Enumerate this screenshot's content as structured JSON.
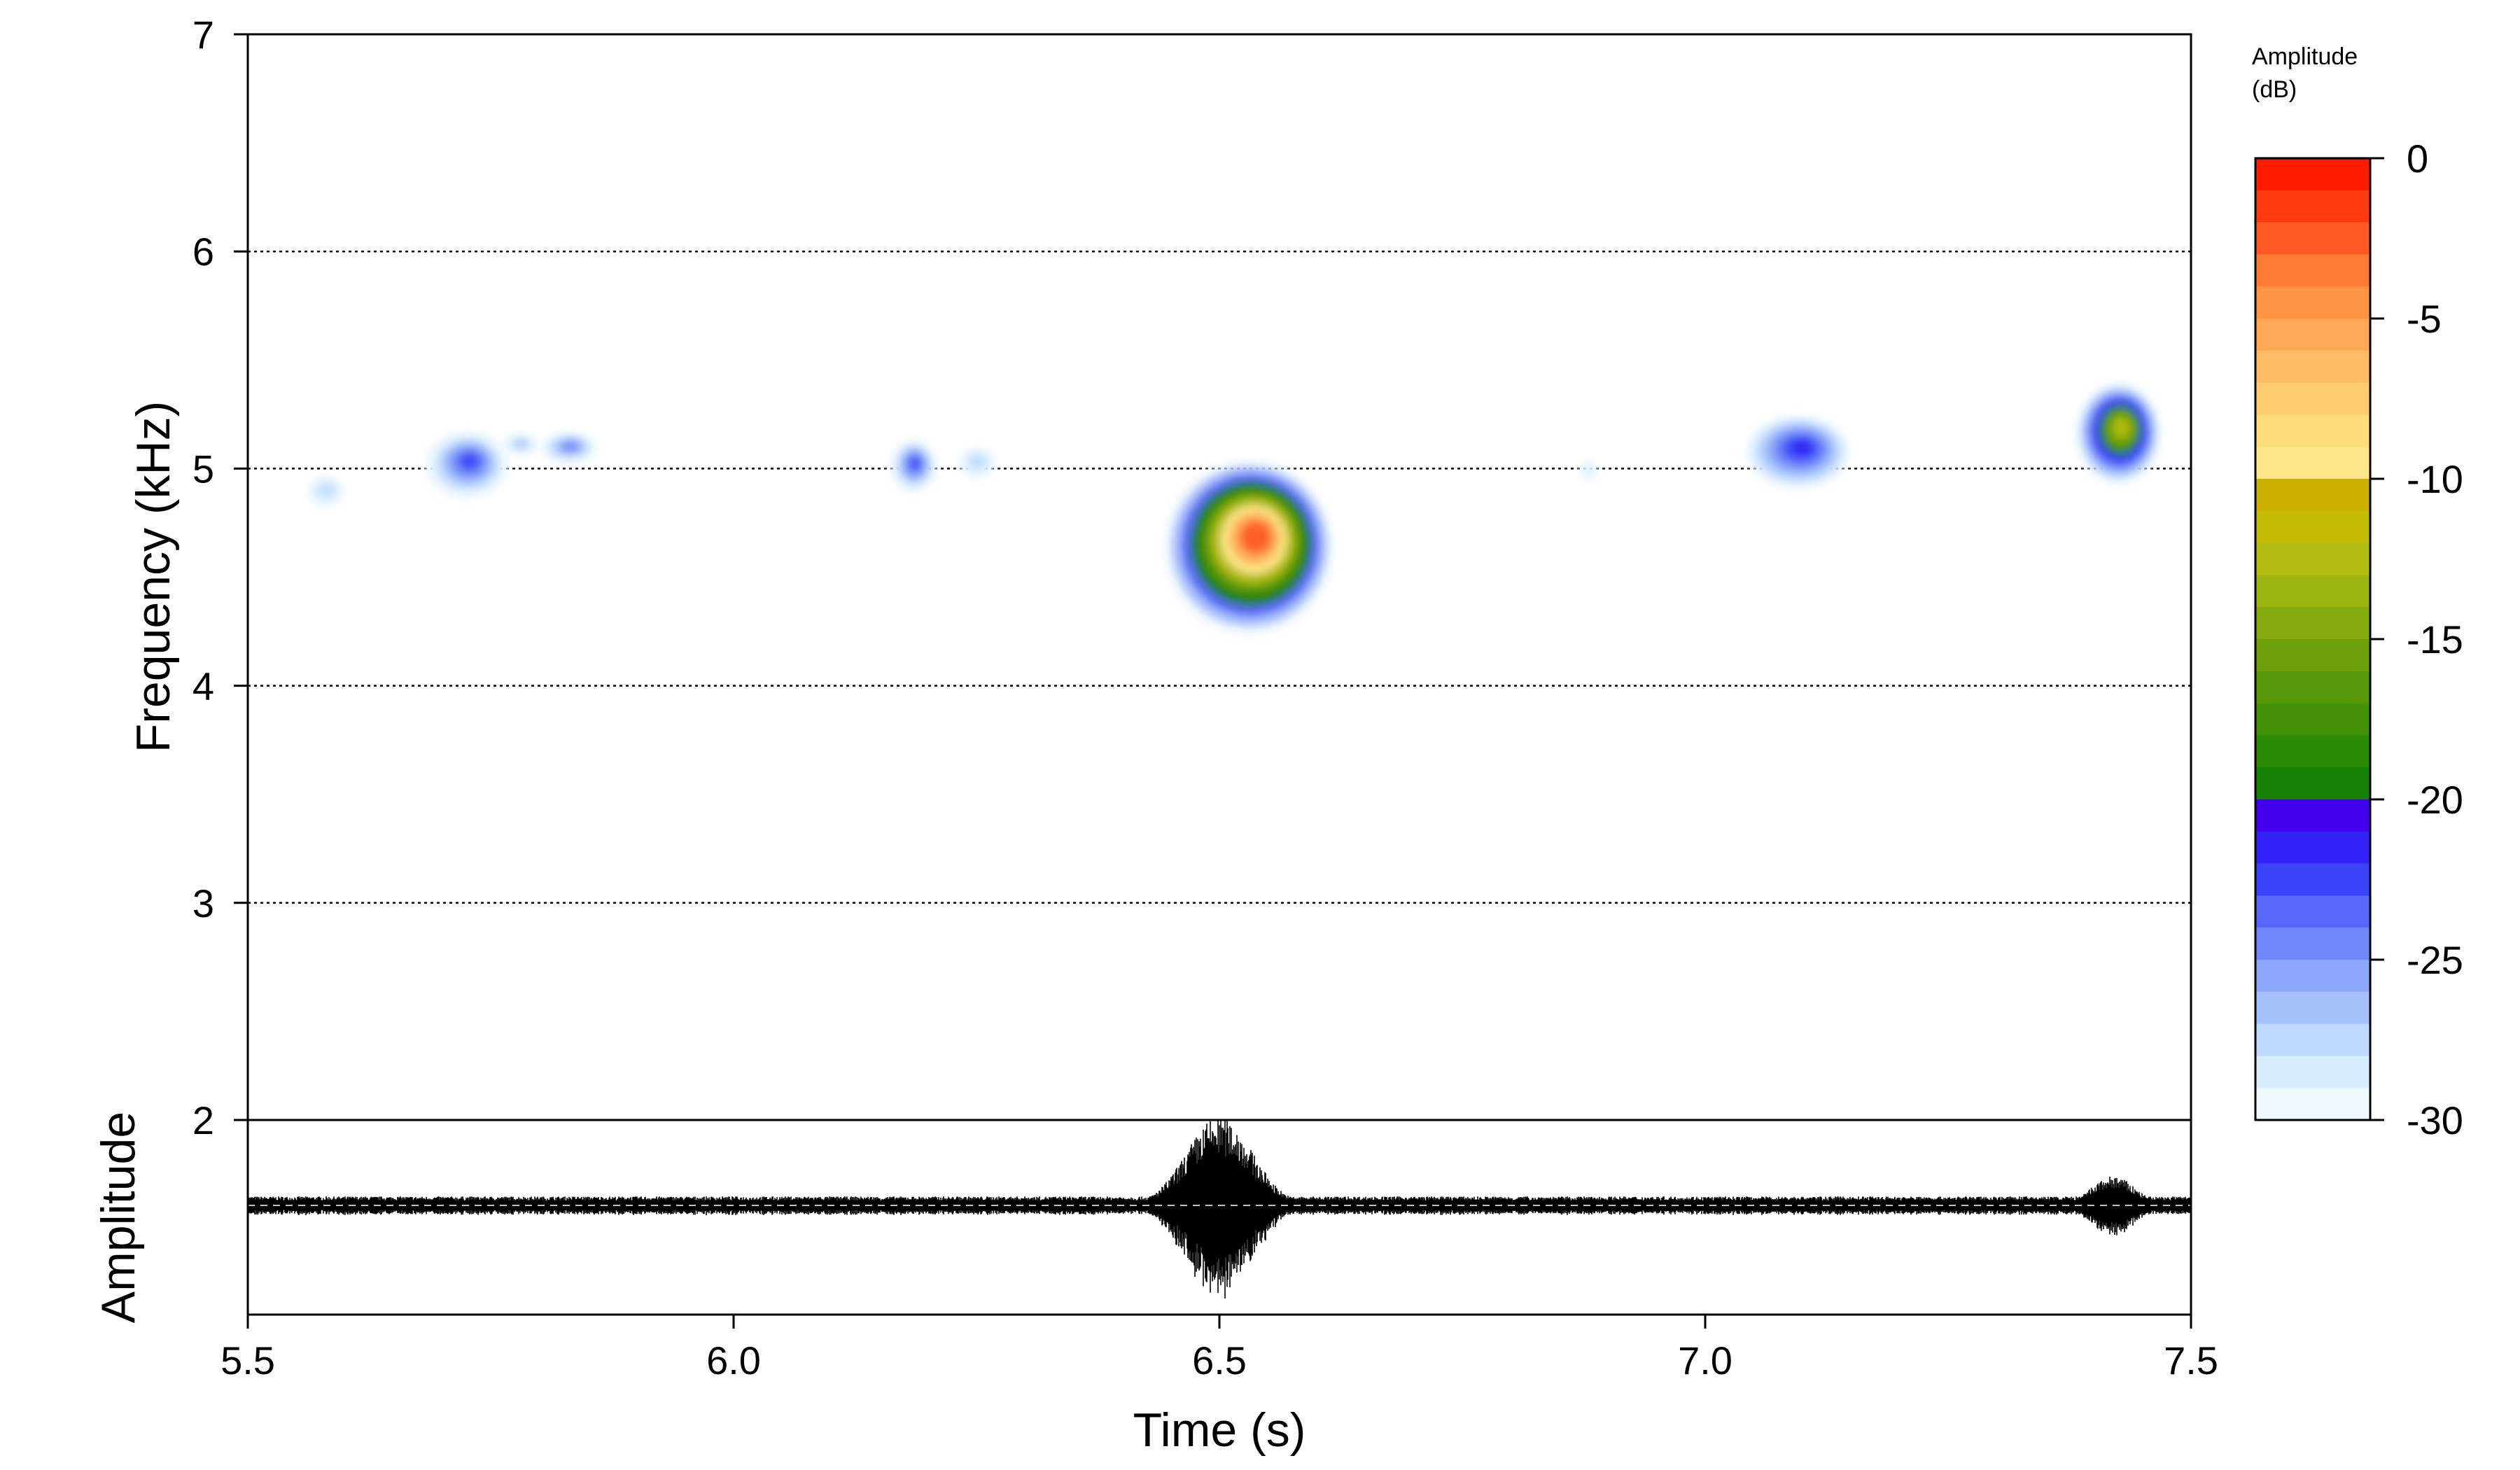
{
  "chart_data": {
    "type": "heatmap",
    "subtype": "spectrogram-with-oscillogram",
    "xlabel": "Time (s)",
    "ylabel_spectrogram": "Frequency (kHz)",
    "ylabel_oscillogram": "Amplitude",
    "colorbar_title_line1": "Amplitude",
    "colorbar_title_line2": "(dB)",
    "xlim": [
      5.5,
      7.5
    ],
    "ylim_spectrogram": [
      2,
      7
    ],
    "x_ticks": [
      "5.5",
      "6.0",
      "6.5",
      "7.0",
      "7.5"
    ],
    "x_tick_values": [
      5.5,
      6.0,
      6.5,
      7.0,
      7.5
    ],
    "y_ticks": [
      "2",
      "3",
      "4",
      "5",
      "6",
      "7"
    ],
    "y_tick_values": [
      2,
      3,
      4,
      5,
      6,
      7
    ],
    "gridlines_khz": [
      3,
      4,
      5,
      6
    ],
    "grid_style": "dotted horizontal",
    "colorbar_ticks": [
      "0",
      "-5",
      "-10",
      "-15",
      "-20",
      "-25",
      "-30"
    ],
    "colorbar_tick_values": [
      0,
      -5,
      -10,
      -15,
      -20,
      -25,
      -30
    ],
    "colorbar_range_db": [
      -30,
      0
    ],
    "colorbar_colors_top_to_bottom": [
      "#ff1a00",
      "#ff3a10",
      "#ff5a25",
      "#ff7a35",
      "#ff9445",
      "#ffa855",
      "#ffbb66",
      "#ffcc70",
      "#ffdb7a",
      "#ffe68a",
      "#ccb000",
      "#c4bb05",
      "#b3bc10",
      "#9cb510",
      "#85aa0e",
      "#6ea00c",
      "#579808",
      "#409008",
      "#2a8a06",
      "#158004",
      "#4400ee",
      "#3322f5",
      "#3a44f8",
      "#5566f8",
      "#7088f8",
      "#8ca6fa",
      "#a6c0fc",
      "#c0daff",
      "#d8ecff",
      "#eef8ff"
    ],
    "calls": [
      {
        "start_s": 5.56,
        "end_s": 5.6,
        "freq_khz": [
          4.82,
          4.97
        ],
        "peak_db": -27
      },
      {
        "start_s": 5.68,
        "end_s": 5.77,
        "freq_khz": [
          4.85,
          5.18
        ],
        "peak_db": -22
      },
      {
        "start_s": 5.76,
        "end_s": 5.8,
        "freq_khz": [
          5.06,
          5.16
        ],
        "peak_db": -26
      },
      {
        "start_s": 5.8,
        "end_s": 5.86,
        "freq_khz": [
          5.02,
          5.17
        ],
        "peak_db": -24
      },
      {
        "start_s": 6.16,
        "end_s": 6.21,
        "freq_khz": [
          4.88,
          5.14
        ],
        "peak_db": -22
      },
      {
        "start_s": 6.23,
        "end_s": 6.27,
        "freq_khz": [
          4.95,
          5.1
        ],
        "peak_db": -27
      },
      {
        "start_s": 6.44,
        "end_s": 6.62,
        "freq_khz": [
          4.22,
          5.05
        ],
        "peak_db": -2
      },
      {
        "start_s": 6.87,
        "end_s": 6.89,
        "freq_khz": [
          4.94,
          5.04
        ],
        "peak_db": -28
      },
      {
        "start_s": 7.04,
        "end_s": 7.15,
        "freq_khz": [
          4.9,
          5.25
        ],
        "peak_db": -21
      },
      {
        "start_s": 7.38,
        "end_s": 7.47,
        "freq_khz": [
          4.92,
          5.4
        ],
        "peak_db": -12
      }
    ],
    "waveform_bursts": [
      {
        "center_s": 6.5,
        "width_s": 0.06,
        "relative_amplitude": 1.0
      },
      {
        "center_s": 7.42,
        "width_s": 0.04,
        "relative_amplitude": 0.33
      },
      {
        "center_s": 5.73,
        "width_s": 0.05,
        "relative_amplitude": 0.1
      },
      {
        "center_s": 6.2,
        "width_s": 0.04,
        "relative_amplitude": 0.08
      },
      {
        "center_s": 7.1,
        "width_s": 0.05,
        "relative_amplitude": 0.08
      }
    ],
    "waveform_baseline_relative": 0.1,
    "waveform_color": "#000000",
    "waveform_center_line": "dashed grey"
  }
}
